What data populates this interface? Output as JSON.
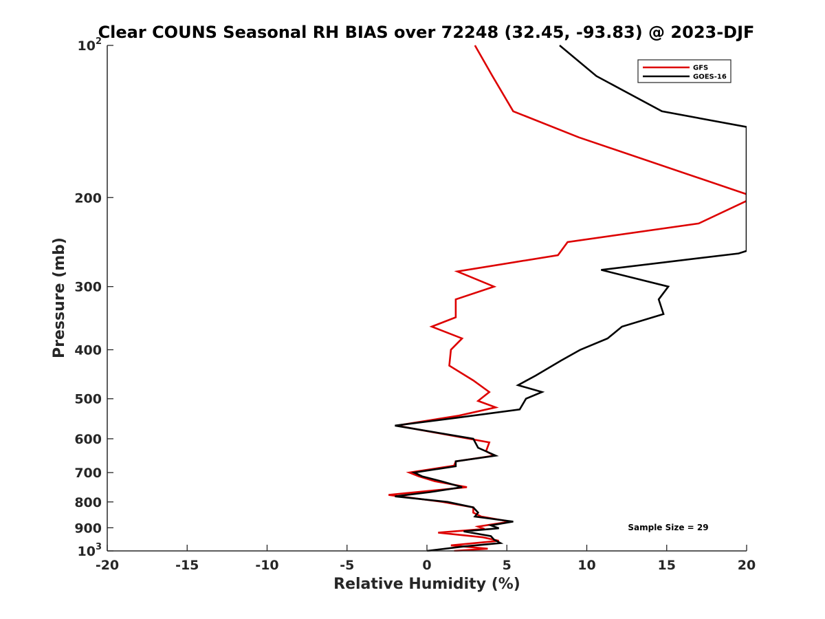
{
  "chart_data": {
    "type": "line",
    "title": "Clear COUNS Seasonal RH BIAS over 72248 (32.45, -93.83) @ 2023-DJF",
    "xlabel": "Relative Humidity (%)",
    "ylabel": "Pressure (mb)",
    "xlim": [
      -20,
      20
    ],
    "ylim": [
      100,
      1000
    ],
    "yscale": "log",
    "y_reversed": true,
    "grid": false,
    "legend_position": "top-right",
    "x_ticks": [
      "-20",
      "-15",
      "-10",
      "-5",
      "0",
      "5",
      "10",
      "15",
      "20"
    ],
    "x_tick_values": [
      -20,
      -15,
      -10,
      -5,
      0,
      5,
      10,
      15,
      20
    ],
    "y_ticks": [
      {
        "value": 100,
        "base": "10",
        "exp": "2"
      },
      {
        "value": 200,
        "base": "200",
        "exp": ""
      },
      {
        "value": 300,
        "base": "300",
        "exp": ""
      },
      {
        "value": 400,
        "base": "400",
        "exp": ""
      },
      {
        "value": 500,
        "base": "500",
        "exp": ""
      },
      {
        "value": 600,
        "base": "600",
        "exp": ""
      },
      {
        "value": 700,
        "base": "700",
        "exp": ""
      },
      {
        "value": 800,
        "base": "800",
        "exp": ""
      },
      {
        "value": 900,
        "base": "900",
        "exp": ""
      },
      {
        "value": 1000,
        "base": "10",
        "exp": "3"
      }
    ],
    "annotation": "Sample Size = 29",
    "series": [
      {
        "name": "GFS",
        "color": "#dd0000",
        "points": [
          [
            3.0,
            100
          ],
          [
            4.1,
            115
          ],
          [
            5.4,
            135
          ],
          [
            9.5,
            152
          ],
          [
            20.0,
            197
          ],
          [
            20.0,
            203
          ],
          [
            17.0,
            225
          ],
          [
            8.8,
            245
          ],
          [
            8.2,
            260
          ],
          [
            1.9,
            280
          ],
          [
            4.2,
            300
          ],
          [
            1.8,
            318
          ],
          [
            1.8,
            345
          ],
          [
            0.3,
            360
          ],
          [
            2.2,
            380
          ],
          [
            1.5,
            400
          ],
          [
            1.4,
            430
          ],
          [
            2.9,
            460
          ],
          [
            3.9,
            485
          ],
          [
            3.2,
            505
          ],
          [
            4.3,
            520
          ],
          [
            2.0,
            540
          ],
          [
            -1.9,
            565
          ],
          [
            3.9,
            610
          ],
          [
            3.7,
            635
          ],
          [
            4.2,
            648
          ],
          [
            1.8,
            665
          ],
          [
            1.7,
            678
          ],
          [
            -1.1,
            700
          ],
          [
            -0.5,
            712
          ],
          [
            0.5,
            728
          ],
          [
            2.5,
            748
          ],
          [
            -2.4,
            775
          ],
          [
            1.0,
            800
          ],
          [
            2.9,
            820
          ],
          [
            2.9,
            840
          ],
          [
            3.4,
            855
          ],
          [
            5.2,
            875
          ],
          [
            3.2,
            895
          ],
          [
            3.6,
            905
          ],
          [
            0.7,
            920
          ],
          [
            3.5,
            940
          ],
          [
            4.5,
            955
          ],
          [
            1.5,
            975
          ],
          [
            3.8,
            990
          ],
          [
            1.7,
            1000
          ]
        ]
      },
      {
        "name": "GOES-16",
        "color": "#000000",
        "points": [
          [
            8.3,
            100
          ],
          [
            10.6,
            115
          ],
          [
            14.7,
            135
          ],
          [
            20.0,
            145
          ],
          [
            20.0,
            255
          ],
          [
            19.5,
            258
          ],
          [
            10.9,
            278
          ],
          [
            15.1,
            300
          ],
          [
            14.5,
            318
          ],
          [
            14.8,
            340
          ],
          [
            12.2,
            360
          ],
          [
            11.3,
            380
          ],
          [
            9.6,
            400
          ],
          [
            8.4,
            420
          ],
          [
            6.8,
            450
          ],
          [
            5.7,
            470
          ],
          [
            7.2,
            485
          ],
          [
            6.2,
            500
          ],
          [
            5.8,
            525
          ],
          [
            1.9,
            545
          ],
          [
            -2.0,
            565
          ],
          [
            2.9,
            600
          ],
          [
            3.2,
            625
          ],
          [
            4.3,
            648
          ],
          [
            1.8,
            665
          ],
          [
            1.8,
            680
          ],
          [
            -0.8,
            700
          ],
          [
            -0.3,
            712
          ],
          [
            0.9,
            728
          ],
          [
            2.2,
            748
          ],
          [
            0.2,
            765
          ],
          [
            -2.0,
            780
          ],
          [
            1.3,
            800
          ],
          [
            2.9,
            820
          ],
          [
            3.2,
            840
          ],
          [
            3.0,
            855
          ],
          [
            5.4,
            875
          ],
          [
            4.0,
            890
          ],
          [
            4.5,
            902
          ],
          [
            2.3,
            915
          ],
          [
            4.0,
            935
          ],
          [
            4.2,
            950
          ],
          [
            4.6,
            965
          ],
          [
            2.3,
            980
          ],
          [
            0.0,
            1000
          ]
        ]
      }
    ]
  }
}
